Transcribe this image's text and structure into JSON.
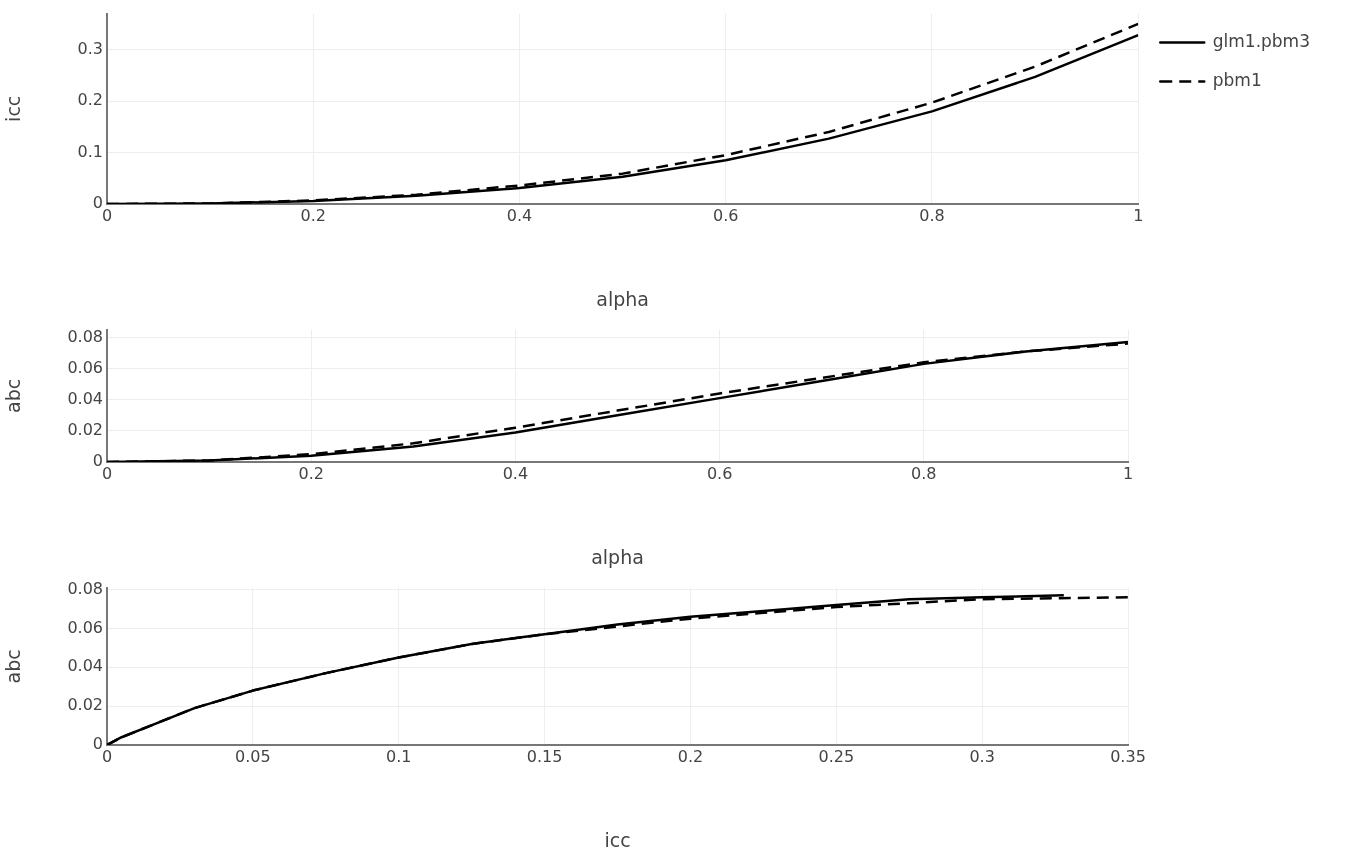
{
  "chart_data": [
    {
      "type": "line",
      "xlabel": "alpha",
      "ylabel": "icc",
      "xlim": [
        0,
        1
      ],
      "ylim": [
        0,
        0.37
      ],
      "xticks": [
        0,
        0.2,
        0.4,
        0.6,
        0.8,
        1
      ],
      "yticks": [
        0,
        0.1,
        0.2,
        0.3
      ],
      "grid": true,
      "legend": "top right",
      "marker": "none",
      "series": [
        {
          "name": "glm1.pbm3",
          "color": "#000000",
          "line_style": "solid",
          "x": [
            0,
            0.1,
            0.2,
            0.3,
            0.4,
            0.5,
            0.6,
            0.7,
            0.8,
            0.9,
            1
          ],
          "values": [
            0,
            0.001,
            0.006,
            0.016,
            0.031,
            0.053,
            0.085,
            0.127,
            0.18,
            0.247,
            0.328
          ]
        },
        {
          "name": "pbm1",
          "color": "#000000",
          "line_style": "dashed",
          "x": [
            0,
            0.1,
            0.2,
            0.3,
            0.4,
            0.5,
            0.6,
            0.7,
            0.8,
            0.9,
            1
          ],
          "values": [
            0,
            0.001,
            0.007,
            0.018,
            0.036,
            0.059,
            0.095,
            0.14,
            0.197,
            0.267,
            0.35
          ]
        }
      ]
    },
    {
      "type": "line",
      "xlabel": "alpha",
      "ylabel": "abc",
      "xlim": [
        0,
        1
      ],
      "ylim": [
        0,
        0.085
      ],
      "xticks": [
        0,
        0.2,
        0.4,
        0.6,
        0.8,
        1
      ],
      "yticks": [
        0,
        0.02,
        0.04,
        0.06,
        0.08
      ],
      "grid": true,
      "marker": "none",
      "series": [
        {
          "color": "#000000",
          "line_style": "solid",
          "x": [
            0,
            0.1,
            0.2,
            0.3,
            0.4,
            0.5,
            0.6,
            0.7,
            0.8,
            0.9,
            1
          ],
          "values": [
            0,
            0.001,
            0.004,
            0.01,
            0.019,
            0.03,
            0.041,
            0.052,
            0.063,
            0.071,
            0.077
          ]
        },
        {
          "color": "#000000",
          "line_style": "dashed",
          "x": [
            0,
            0.1,
            0.2,
            0.3,
            0.4,
            0.5,
            0.6,
            0.7,
            0.8,
            0.9,
            1
          ],
          "values": [
            0,
            0.001,
            0.005,
            0.012,
            0.022,
            0.033,
            0.044,
            0.054,
            0.064,
            0.071,
            0.076
          ]
        }
      ]
    },
    {
      "type": "line",
      "xlabel": "icc",
      "ylabel": "abc",
      "xlim": [
        0,
        0.35
      ],
      "ylim": [
        0,
        0.081
      ],
      "xticks": [
        0,
        0.05,
        0.1,
        0.15,
        0.2,
        0.25,
        0.3,
        0.35
      ],
      "yticks": [
        0,
        0.02,
        0.04,
        0.06,
        0.08
      ],
      "grid": true,
      "marker": "none",
      "series": [
        {
          "color": "#000000",
          "line_style": "solid",
          "x": [
            0,
            0.005,
            0.015,
            0.03,
            0.05,
            0.075,
            0.1,
            0.125,
            0.15,
            0.175,
            0.2,
            0.225,
            0.25,
            0.275,
            0.3,
            0.328
          ],
          "values": [
            0,
            0.004,
            0.01,
            0.019,
            0.028,
            0.037,
            0.045,
            0.052,
            0.057,
            0.062,
            0.066,
            0.069,
            0.072,
            0.075,
            0.076,
            0.077
          ]
        },
        {
          "color": "#000000",
          "line_style": "dashed",
          "x": [
            0,
            0.005,
            0.015,
            0.03,
            0.05,
            0.075,
            0.1,
            0.125,
            0.15,
            0.175,
            0.2,
            0.225,
            0.25,
            0.275,
            0.3,
            0.325,
            0.35
          ],
          "values": [
            0,
            0.004,
            0.01,
            0.019,
            0.028,
            0.037,
            0.045,
            0.052,
            0.057,
            0.061,
            0.065,
            0.068,
            0.071,
            0.073,
            0.075,
            0.0755,
            0.076
          ]
        }
      ]
    }
  ]
}
